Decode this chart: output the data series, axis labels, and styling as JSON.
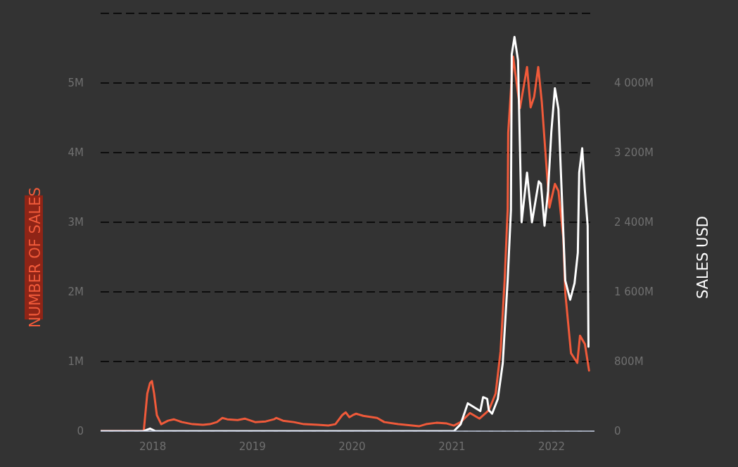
{
  "chart_data": {
    "type": "line",
    "ylabel": "NUMBER OF SALES",
    "y2label": "SALES USD",
    "xlim": [
      "2017-06-24",
      "2022-06-07"
    ],
    "xticks": [
      {
        "value": "2018-01-01",
        "label": "2018"
      },
      {
        "value": "2019-01-01",
        "label": "2019"
      },
      {
        "value": "2020-01-01",
        "label": "2020"
      },
      {
        "value": "2021-01-01",
        "label": "2021"
      },
      {
        "value": "2022-01-01",
        "label": "2022"
      }
    ],
    "ylim": [
      0,
      6
    ],
    "yticks": [
      {
        "value": 0,
        "label": "0"
      },
      {
        "value": 1,
        "label": "1M"
      },
      {
        "value": 2,
        "label": "2M"
      },
      {
        "value": 3,
        "label": "3M"
      },
      {
        "value": 4,
        "label": "4M"
      },
      {
        "value": 5,
        "label": "5M"
      },
      {
        "value": 6,
        "label": null
      }
    ],
    "y2lim": [
      0,
      4800
    ],
    "y2ticks": [
      {
        "value": 0,
        "label": "0"
      },
      {
        "value": 800,
        "label": "800M"
      },
      {
        "value": 1600,
        "label": "1 600M"
      },
      {
        "value": 2400,
        "label": "2 400M"
      },
      {
        "value": 3200,
        "label": "3 200M"
      },
      {
        "value": 4000,
        "label": "4 000M"
      },
      {
        "value": 4800,
        "label": null
      }
    ],
    "grid": "y",
    "marker": "none",
    "line_style": "solid",
    "series": [
      {
        "color": "#f05a3a",
        "x": [
          "2017-06-24",
          "2017-11-29",
          "2017-12-12",
          "2017-12-22",
          "2017-12-29",
          "2018-01-06",
          "2018-01-16",
          "2018-02-01",
          "2018-02-26",
          "2018-03-19",
          "2018-04-18",
          "2018-05-27",
          "2018-07-04",
          "2018-07-29",
          "2018-08-24",
          "2018-09-13",
          "2018-10-01",
          "2018-11-08",
          "2018-12-04",
          "2018-12-19",
          "2019-01-11",
          "2019-02-19",
          "2019-03-21",
          "2019-03-29",
          "2019-04-23",
          "2019-06-01",
          "2019-07-09",
          "2019-08-29",
          "2019-10-06",
          "2019-11-01",
          "2019-11-26",
          "2019-12-09",
          "2019-12-22",
          "2020-01-04",
          "2020-01-16",
          "2020-02-11",
          "2020-04-02",
          "2020-04-28",
          "2020-06-18",
          "2020-08-08",
          "2020-09-02",
          "2020-09-28",
          "2020-11-05",
          "2020-12-13",
          "2021-01-08",
          "2021-02-02",
          "2021-03-08",
          "2021-04-12",
          "2021-05-16",
          "2021-06-10",
          "2021-06-28",
          "2021-07-13",
          "2021-07-24",
          "2021-07-26",
          "2021-08-13",
          "2021-09-07",
          "2021-10-03",
          "2021-10-16",
          "2021-10-29",
          "2021-11-13",
          "2021-11-26",
          "2021-12-24",
          "2022-01-13",
          "2022-01-26",
          "2022-02-13",
          "2022-02-20",
          "2022-03-13",
          "2022-04-05",
          "2022-04-15",
          "2022-05-03",
          "2022-05-18"
        ],
        "values": [
          0,
          0,
          0.54,
          0.69,
          0.72,
          0.54,
          0.23,
          0.1,
          0.15,
          0.17,
          0.13,
          0.1,
          0.09,
          0.1,
          0.13,
          0.19,
          0.17,
          0.16,
          0.18,
          0.16,
          0.13,
          0.14,
          0.17,
          0.19,
          0.15,
          0.13,
          0.1,
          0.09,
          0.08,
          0.1,
          0.23,
          0.27,
          0.2,
          0.23,
          0.25,
          0.22,
          0.19,
          0.13,
          0.1,
          0.08,
          0.07,
          0.1,
          0.12,
          0.11,
          0.08,
          0.13,
          0.26,
          0.18,
          0.3,
          0.54,
          1.15,
          2.17,
          3.18,
          4.29,
          5.38,
          4.64,
          5.23,
          4.65,
          4.8,
          5.23,
          4.73,
          3.21,
          3.55,
          3.45,
          2.77,
          1.99,
          1.12,
          0.98,
          1.37,
          1.25,
          0.87
        ]
      },
      {
        "color": "#ffffff",
        "axis": "y2",
        "x": [
          "2017-06-24",
          "2017-11-29",
          "2017-12-22",
          "2018-01-11",
          "2021-01-08",
          "2021-02-02",
          "2021-02-15",
          "2021-02-28",
          "2021-03-25",
          "2021-04-15",
          "2021-04-25",
          "2021-05-10",
          "2021-05-16",
          "2021-05-28",
          "2021-06-18",
          "2021-07-06",
          "2021-07-24",
          "2021-08-05",
          "2021-08-08",
          "2021-08-18",
          "2021-08-31",
          "2021-09-13",
          "2021-10-03",
          "2021-10-21",
          "2021-11-15",
          "2021-11-23",
          "2021-12-06",
          "2021-12-19",
          "2021-12-31",
          "2022-01-13",
          "2022-01-26",
          "2022-02-03",
          "2022-02-20",
          "2022-03-10",
          "2022-03-26",
          "2022-04-07",
          "2022-04-12",
          "2022-04-23",
          "2022-05-03",
          "2022-05-13",
          "2022-05-16"
        ],
        "values": [
          0,
          0,
          30,
          0,
          0,
          80,
          200,
          320,
          270,
          230,
          390,
          370,
          240,
          200,
          370,
          780,
          1730,
          2540,
          4330,
          4530,
          4260,
          2400,
          2970,
          2400,
          2870,
          2840,
          2360,
          2760,
          3440,
          3940,
          3700,
          3050,
          1730,
          1510,
          1700,
          2050,
          2970,
          3250,
          2760,
          2360,
          970
        ]
      }
    ]
  }
}
